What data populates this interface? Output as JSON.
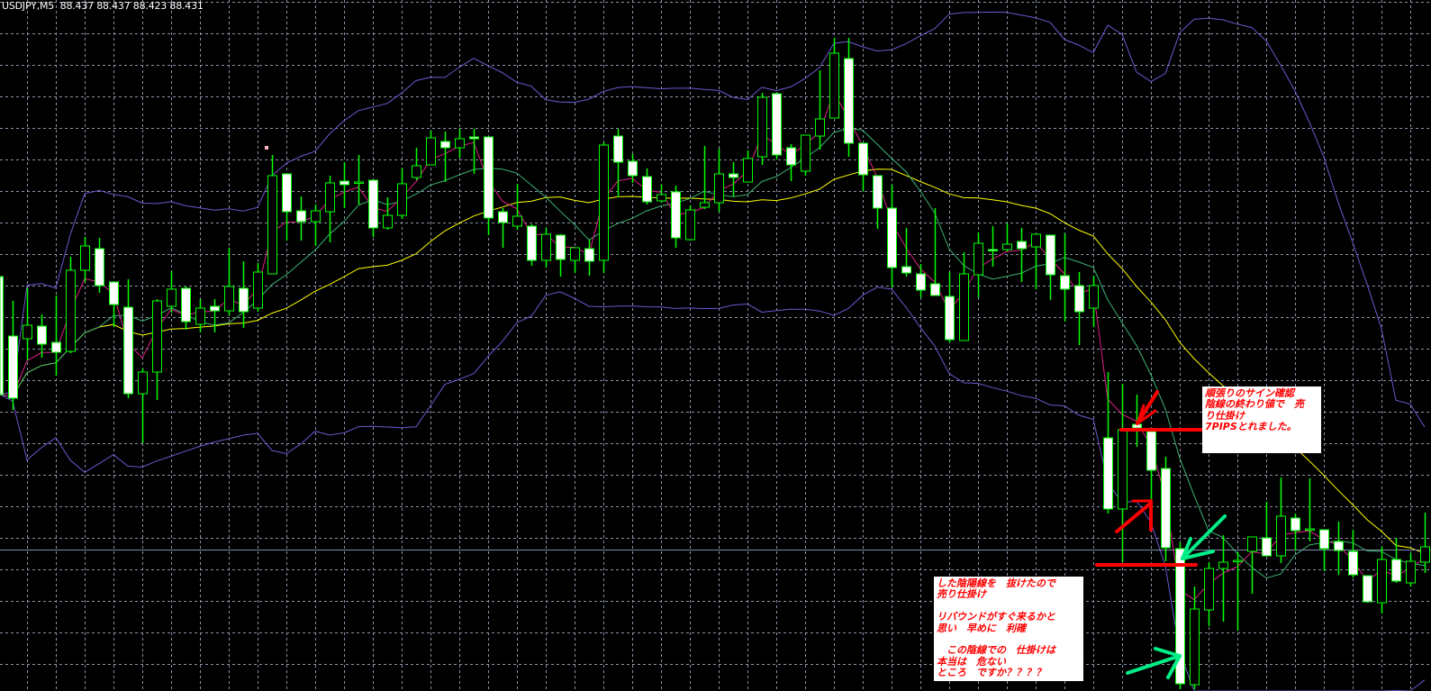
{
  "header": {
    "symbol": "USDJPY,M5",
    "ohlc_text": "88.437 88.437 88.423 88.431"
  },
  "colors": {
    "background": "#000000",
    "grid": "#8a94a8",
    "candle_outline": "#00ff00",
    "bull_body": "#000000",
    "bear_body": "#ffffff",
    "bollinger": "#6a5ad0",
    "ma_slow": "#ffff00",
    "ma_fast": "#e0208a",
    "ma_mid": "#3cb371",
    "bid_line": "#8090b0",
    "annotation_text": "#ff0000",
    "annotation_line": "#ff0000",
    "green_arrow": "#00ee88",
    "fractal_dot": "#ffb6c1"
  },
  "chart_data": {
    "type": "candlestick",
    "title": "USDJPY,M5",
    "bid": 88.431,
    "grid": true,
    "indicators": [
      "bollinger-bands",
      "moving-average-slow",
      "moving-average-fast",
      "moving-average-mid"
    ],
    "ohlc": [
      [
        88.5825,
        88.5825,
        88.517,
        88.517
      ],
      [
        88.5495,
        88.569,
        88.5085,
        88.515
      ],
      [
        88.548,
        88.576,
        88.536,
        88.5555
      ],
      [
        88.555,
        88.5615,
        88.5375,
        88.545
      ],
      [
        88.546,
        88.572,
        88.5275,
        88.5405
      ],
      [
        88.541,
        88.5935,
        88.54,
        88.586
      ],
      [
        88.586,
        88.6045,
        88.5795,
        88.5995
      ],
      [
        88.598,
        88.604,
        88.5735,
        88.5775
      ],
      [
        88.5795,
        88.5795,
        88.5545,
        88.567
      ],
      [
        88.5655,
        88.581,
        88.515,
        88.5175
      ],
      [
        88.5175,
        88.5315,
        88.49,
        88.5295
      ],
      [
        88.5295,
        88.57,
        88.514,
        88.569
      ],
      [
        88.566,
        88.5855,
        88.5625,
        88.5755
      ],
      [
        88.576,
        88.577,
        88.553,
        88.5575
      ],
      [
        88.556,
        88.57,
        88.5515,
        88.565
      ],
      [
        88.566,
        88.57,
        88.5515,
        88.5635
      ],
      [
        88.5635,
        88.5985,
        88.561,
        88.577
      ],
      [
        88.576,
        88.591,
        88.554,
        88.563
      ],
      [
        88.565,
        88.59,
        88.563,
        88.585
      ],
      [
        88.584,
        88.65,
        88.584,
        88.6385
      ],
      [
        88.6395,
        88.6395,
        88.6025,
        88.6185
      ],
      [
        88.619,
        88.627,
        88.6025,
        88.613
      ],
      [
        88.613,
        88.6225,
        88.5995,
        88.619
      ],
      [
        88.6185,
        88.6385,
        88.6015,
        88.6345
      ],
      [
        88.6355,
        88.646,
        88.6205,
        88.6335
      ],
      [
        88.635,
        88.65,
        88.6225,
        88.635
      ],
      [
        88.636,
        88.636,
        88.6045,
        88.6095
      ],
      [
        88.6095,
        88.6265,
        88.6085,
        88.6165
      ],
      [
        88.6165,
        88.6425,
        88.6145,
        88.634
      ],
      [
        88.6375,
        88.654,
        88.636,
        88.644
      ],
      [
        88.6445,
        88.6635,
        88.6445,
        88.6595
      ],
      [
        88.6575,
        88.663,
        88.635,
        88.654
      ],
      [
        88.654,
        88.6645,
        88.6485,
        88.659
      ],
      [
        88.66,
        88.6645,
        88.6395,
        88.659
      ],
      [
        88.66,
        88.66,
        88.6055,
        88.615
      ],
      [
        88.6185,
        88.6205,
        88.5985,
        88.6125
      ],
      [
        88.6105,
        88.634,
        88.6085,
        88.616
      ],
      [
        88.6105,
        88.6115,
        88.5885,
        88.5915
      ],
      [
        88.5915,
        88.6095,
        88.5875,
        88.606
      ],
      [
        88.6055,
        88.606,
        88.5825,
        88.592
      ],
      [
        88.5915,
        88.5985,
        88.5845,
        88.5985
      ],
      [
        88.598,
        88.603,
        88.583,
        88.591
      ],
      [
        88.5915,
        88.657,
        88.5845,
        88.6555
      ],
      [
        88.6605,
        88.6645,
        88.6265,
        88.646
      ],
      [
        88.6465,
        88.6505,
        88.6345,
        88.6385
      ],
      [
        88.638,
        88.6425,
        88.6225,
        88.624
      ],
      [
        88.6245,
        88.6335,
        88.6235,
        88.628
      ],
      [
        88.6295,
        88.633,
        88.5985,
        88.604
      ],
      [
        88.603,
        88.622,
        88.6025,
        88.6195
      ],
      [
        88.621,
        88.655,
        88.62,
        88.6235
      ],
      [
        88.6235,
        88.6535,
        88.6185,
        88.6395
      ],
      [
        88.6395,
        88.646,
        88.627,
        88.6375
      ],
      [
        88.635,
        88.6525,
        88.635,
        88.648
      ],
      [
        88.649,
        88.6845,
        88.6445,
        88.682
      ],
      [
        88.684,
        88.6845,
        88.6475,
        88.65
      ],
      [
        88.654,
        88.656,
        88.6355,
        88.6445
      ],
      [
        88.641,
        88.661,
        88.6385,
        88.661
      ],
      [
        88.6605,
        88.697,
        88.653,
        88.67
      ],
      [
        88.6705,
        88.715,
        88.6705,
        88.7065
      ],
      [
        88.7035,
        88.715,
        88.649,
        88.6565
      ],
      [
        88.6565,
        88.6565,
        88.63,
        88.639
      ],
      [
        88.6385,
        88.6385,
        88.609,
        88.6205
      ],
      [
        88.6205,
        88.6335,
        88.5765,
        88.5875
      ],
      [
        88.588,
        88.6095,
        88.5825,
        88.5845
      ],
      [
        88.584,
        88.5895,
        88.571,
        88.575
      ],
      [
        88.5785,
        88.6205,
        88.572,
        88.572
      ],
      [
        88.5715,
        88.585,
        88.546,
        88.5475
      ],
      [
        88.547,
        88.596,
        88.547,
        88.584
      ],
      [
        88.5835,
        88.607,
        88.571,
        88.601
      ],
      [
        88.5975,
        88.6105,
        88.588,
        88.597
      ],
      [
        88.5975,
        88.612,
        88.5965,
        88.6005
      ],
      [
        88.602,
        88.6095,
        88.5795,
        88.598
      ],
      [
        88.599,
        88.606,
        88.5755,
        88.606
      ],
      [
        88.6055,
        88.6055,
        88.5695,
        88.5835
      ],
      [
        88.583,
        88.6065,
        88.5575,
        88.5755
      ],
      [
        88.5775,
        88.585,
        88.5445,
        88.563
      ],
      [
        88.565,
        88.583,
        88.5545,
        88.5775
      ],
      [
        88.493,
        88.5295,
        88.451,
        88.4535
      ],
      [
        88.4535,
        88.523,
        88.424,
        88.4975
      ],
      [
        88.5005,
        88.517,
        88.488,
        88.4985
      ],
      [
        88.4965,
        88.4965,
        88.441,
        88.475
      ],
      [
        88.476,
        88.4825,
        88.4245,
        88.432
      ],
      [
        88.4315,
        88.435,
        88.3535,
        88.3565
      ],
      [
        88.356,
        88.4105,
        88.3535,
        88.398
      ],
      [
        88.3975,
        88.424,
        88.3885,
        88.4205
      ],
      [
        88.4205,
        88.439,
        88.391,
        88.424
      ],
      [
        88.425,
        88.4295,
        88.386,
        88.425
      ],
      [
        88.43,
        88.438,
        88.4065,
        88.438
      ],
      [
        88.4375,
        88.4575,
        88.4275,
        88.4275
      ],
      [
        88.4275,
        88.471,
        88.4235,
        88.4495
      ],
      [
        88.4485,
        88.451,
        88.4305,
        88.4415
      ],
      [
        88.4425,
        88.4705,
        88.4355,
        88.4425
      ],
      [
        88.442,
        88.442,
        88.419,
        88.4315
      ],
      [
        88.4355,
        88.4465,
        88.417,
        88.4305
      ],
      [
        88.43,
        88.442,
        88.4155,
        88.417
      ],
      [
        88.4165,
        88.4165,
        88.4015,
        88.402
      ],
      [
        88.4015,
        88.4325,
        88.3955,
        88.4255
      ],
      [
        88.4255,
        88.4375,
        88.4125,
        88.4135
      ],
      [
        88.4125,
        88.429,
        88.4105,
        88.4245
      ],
      [
        88.424,
        88.4515,
        88.418,
        88.4325
      ]
    ]
  },
  "annotations": {
    "note1": {
      "lines": [
        "順張りのサイン確認",
        "陰線の終わり値で　売",
        "り仕掛け",
        "7PIPSとれました。"
      ]
    },
    "note2": {
      "lines": [
        "した陰陽線を　抜けたので",
        "売り仕掛け",
        "",
        "リバウンドがすぐ来るかと",
        "思い　早めに　利確",
        "",
        "　この陰線での　仕掛けは",
        "本当は　危ない",
        "ところ　ですか？？？？"
      ]
    }
  }
}
